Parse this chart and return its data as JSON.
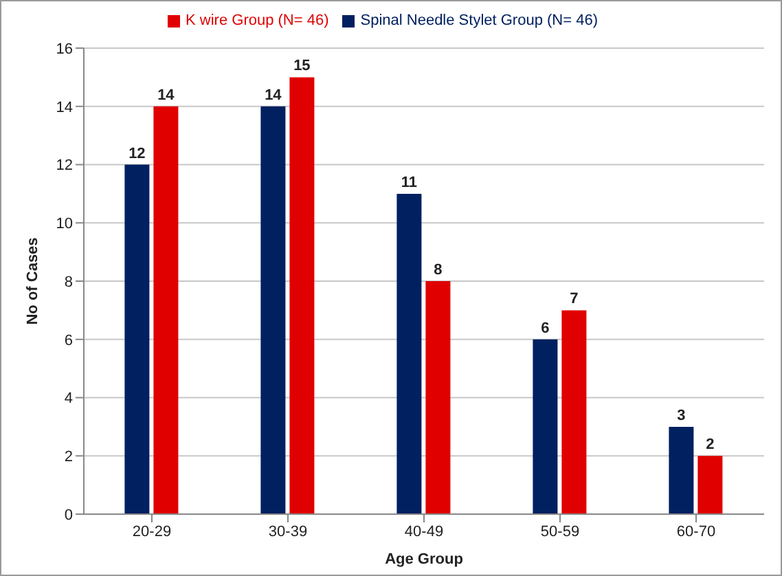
{
  "chart_data": {
    "type": "bar",
    "xlabel": "Age Group",
    "ylabel": "No of Cases",
    "categories": [
      "20-29",
      "30-39",
      "40-49",
      "50-59",
      "60-70"
    ],
    "series": [
      {
        "name": "Spinal Needle Stylet Group (N= 46)",
        "color": "#002060",
        "values": [
          12,
          14,
          11,
          6,
          3
        ]
      },
      {
        "name": "K wire Group (N= 46)",
        "color": "#e00000",
        "values": [
          14,
          15,
          8,
          7,
          2
        ]
      }
    ],
    "ylim": [
      0,
      16
    ],
    "yticks": [
      0,
      2,
      4,
      6,
      8,
      10,
      12,
      14,
      16
    ],
    "grid": "y",
    "legend": "top",
    "data_labels": true
  }
}
